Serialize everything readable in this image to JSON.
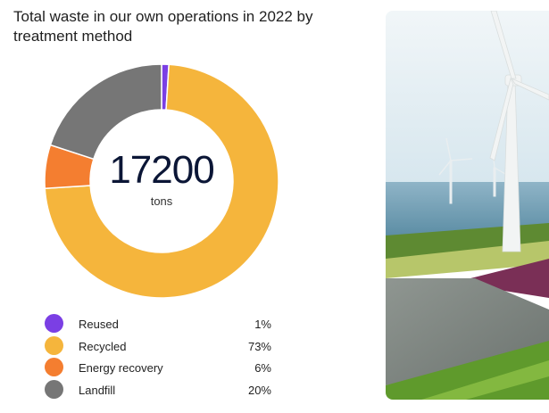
{
  "chart_data": {
    "type": "pie",
    "title": "Total waste in our own operations in 2022 by treatment method",
    "center_value": "17200",
    "center_unit": "tons",
    "categories": [
      "Reused",
      "Recycled",
      "Energy recovery",
      "Landfill"
    ],
    "values": [
      1,
      73,
      6,
      20
    ],
    "value_labels": [
      "1%",
      "73%",
      "6%",
      "20%"
    ],
    "colors": [
      "#7b3fe4",
      "#f5b53c",
      "#f47e30",
      "#767676"
    ],
    "legend_position": "bottom"
  },
  "photo": {
    "subject": "wind-turbines-landscape"
  }
}
